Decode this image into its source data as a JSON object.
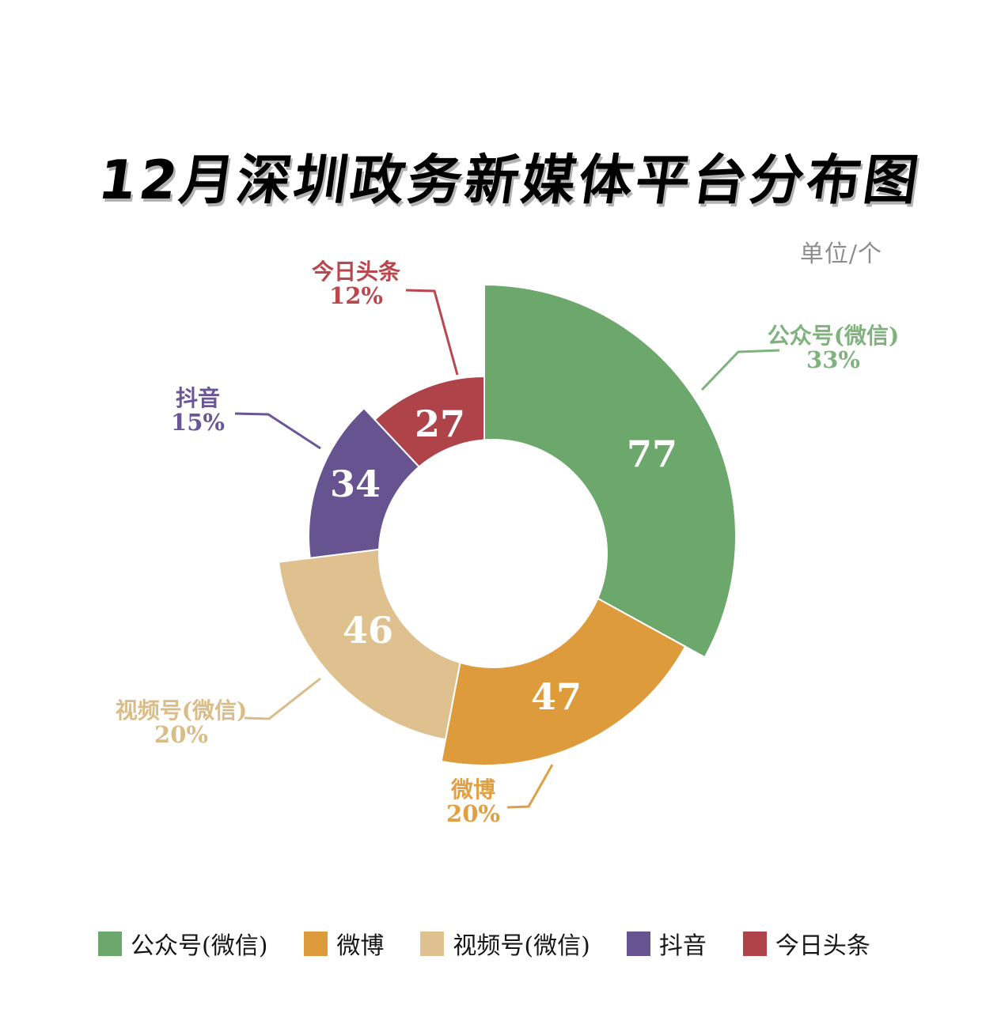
{
  "title": "12月深圳政务新媒体平台分布图",
  "unit_note": "单位/个",
  "chart_data": {
    "type": "pie",
    "subtype": "exploded-rose-donut",
    "title": "12月深圳政务新媒体平台分布图",
    "unit": "单位/个",
    "legend_position": "bottom",
    "total": 231,
    "slices": [
      {
        "label": "公众号(微信)",
        "value": 77,
        "pct": 33,
        "pct_label": "33%",
        "color": "#6CA76C",
        "callout_color": "#7FB27D"
      },
      {
        "label": "微博",
        "value": 47,
        "pct": 20,
        "pct_label": "20%",
        "color": "#DD9B3C",
        "callout_color": "#DF9F42"
      },
      {
        "label": "视频号(微信)",
        "value": 46,
        "pct": 20,
        "pct_label": "20%",
        "color": "#DEC18F",
        "callout_color": "#D9BC86"
      },
      {
        "label": "抖音",
        "value": 34,
        "pct": 15,
        "pct_label": "15%",
        "color": "#675390",
        "callout_color": "#6A5694"
      },
      {
        "label": "今日头条",
        "value": 27,
        "pct": 12,
        "pct_label": "12%",
        "color": "#AF434A",
        "callout_color": "#B8474E"
      }
    ]
  }
}
